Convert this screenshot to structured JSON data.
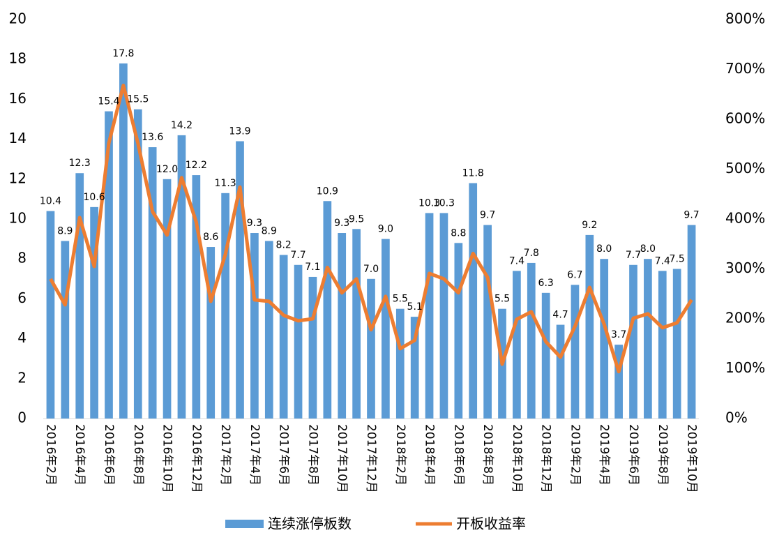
{
  "chart_data": {
    "type": "bar_line",
    "categories": [
      "2016年2月",
      null,
      "2016年4月",
      null,
      "2016年6月",
      null,
      "2016年8月",
      null,
      "2016年10月",
      null,
      "2016年12月",
      null,
      "2017年2月",
      null,
      "2017年4月",
      null,
      "2017年6月",
      null,
      "2017年8月",
      null,
      "2017年10月",
      null,
      "2017年12月",
      null,
      "2018年2月",
      null,
      "2018年4月",
      null,
      "2018年6月",
      null,
      "2018年8月",
      null,
      "2018年10月",
      null,
      "2018年12月",
      null,
      "2019年2月",
      null,
      "2019年4月",
      null,
      "2019年6月",
      null,
      "2019年8月",
      null,
      "2019年10月"
    ],
    "series": [
      {
        "name": "连续涨停板数",
        "type": "bar",
        "color": "#5b9bd5",
        "values": [
          10.4,
          8.9,
          12.3,
          10.6,
          15.4,
          17.8,
          15.5,
          13.6,
          12.0,
          14.2,
          12.2,
          8.6,
          11.3,
          13.9,
          9.3,
          8.9,
          8.2,
          7.7,
          7.1,
          10.9,
          9.3,
          9.5,
          7.0,
          9.0,
          5.5,
          5.1,
          10.3,
          10.3,
          8.8,
          11.8,
          9.7,
          5.5,
          7.4,
          7.8,
          6.3,
          4.7,
          6.7,
          9.2,
          8.0,
          3.7,
          7.7,
          8.0,
          7.4,
          7.5,
          9.7
        ],
        "value_labels": [
          "10.4",
          "8.9",
          "12.3",
          "10.6",
          "15.4",
          "17.8",
          "15.5",
          "13.6",
          "12.0",
          "14.2",
          "12.2",
          "8.6",
          "11.3",
          "13.9",
          "9.3",
          "8.9",
          "8.2",
          "7.7",
          "7.1",
          "10.9",
          "9.3",
          "9.5",
          "7.0",
          "9.0",
          "5.5",
          "5.1",
          "10.3",
          "10.3",
          "8.8",
          "11.8",
          "9.7",
          "5.5",
          "7.4",
          "7.8",
          "6.3",
          "4.7",
          "6.7",
          "9.2",
          "8.0",
          "3.7",
          "7.7",
          "8.0",
          "7.4",
          "7.5",
          "9.7"
        ]
      },
      {
        "name": "开板收益率",
        "type": "line",
        "axis": "y2",
        "color": "#ed7d31",
        "values": [
          280,
          228,
          403,
          305,
          552,
          668,
          552,
          415,
          368,
          483,
          394,
          235,
          329,
          464,
          238,
          235,
          207,
          196,
          200,
          303,
          252,
          280,
          178,
          245,
          140,
          157,
          291,
          280,
          252,
          331,
          283,
          109,
          199,
          214,
          154,
          123,
          185,
          263,
          189,
          94,
          201,
          210,
          182,
          192,
          238
        ]
      }
    ],
    "ylim": [
      0,
      20
    ],
    "yticks": [
      0,
      2,
      4,
      6,
      8,
      10,
      12,
      14,
      16,
      18,
      20
    ],
    "y2lim": [
      0,
      800
    ],
    "y2ticks": [
      {
        "value": 0,
        "label": "0%"
      },
      {
        "value": 100,
        "label": "100%"
      },
      {
        "value": 200,
        "label": "200%"
      },
      {
        "value": 300,
        "label": "300%"
      },
      {
        "value": 400,
        "label": "400%"
      },
      {
        "value": 500,
        "label": "500%"
      },
      {
        "value": 600,
        "label": "600%"
      },
      {
        "value": 700,
        "label": "700%"
      },
      {
        "value": 800,
        "label": "800%"
      }
    ],
    "grid": false,
    "legend": "bottom"
  }
}
